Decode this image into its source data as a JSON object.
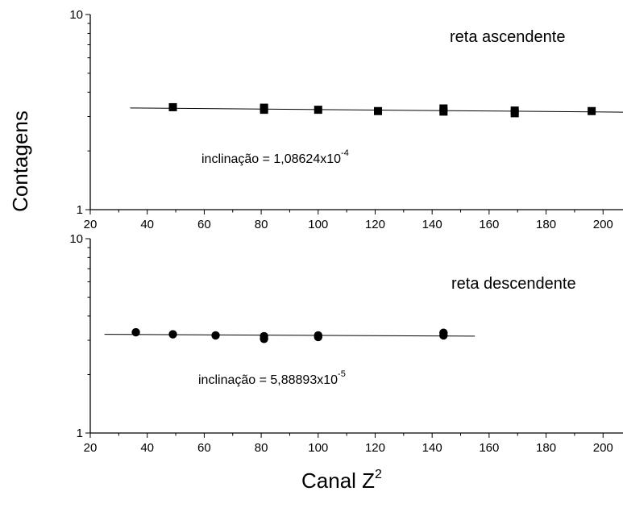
{
  "chart_data": [
    {
      "type": "scatter",
      "title": "reta ascendente",
      "annotation": {
        "text": "inclinação = 1,08624x10",
        "exponent": "-4"
      },
      "xlim": [
        20,
        207
      ],
      "ylim": [
        1,
        10
      ],
      "yscale": "log",
      "xticks": [
        20,
        40,
        60,
        80,
        100,
        120,
        140,
        160,
        180,
        200
      ],
      "yticks": [
        1,
        10
      ],
      "marker": "square",
      "series": [
        {
          "x": [
            49,
            81,
            81,
            100,
            121,
            144,
            144,
            169,
            169,
            196
          ],
          "y": [
            3.35,
            3.33,
            3.25,
            3.25,
            3.2,
            3.3,
            3.18,
            3.22,
            3.12,
            3.2
          ]
        }
      ],
      "fit_line": {
        "x": [
          34,
          207
        ],
        "y": [
          3.32,
          3.16
        ]
      }
    },
    {
      "type": "scatter",
      "title": "reta descendente",
      "annotation": {
        "text": "inclinação = 5,88893x10",
        "exponent": "-5"
      },
      "xlim": [
        20,
        207
      ],
      "ylim": [
        1,
        10
      ],
      "yscale": "log",
      "xticks": [
        20,
        40,
        60,
        80,
        100,
        120,
        140,
        160,
        180,
        200
      ],
      "yticks": [
        1,
        10
      ],
      "marker": "circle",
      "series": [
        {
          "x": [
            36,
            49,
            64,
            81,
            81,
            100,
            100,
            144,
            144
          ],
          "y": [
            3.3,
            3.22,
            3.18,
            3.15,
            3.05,
            3.18,
            3.12,
            3.28,
            3.18
          ]
        }
      ],
      "fit_line": {
        "x": [
          25,
          155
        ],
        "y": [
          3.22,
          3.15
        ]
      }
    }
  ],
  "labels": {
    "ylabel": "Contagens",
    "xlabel": "Canal  Z",
    "xlabel_sup": "2"
  }
}
